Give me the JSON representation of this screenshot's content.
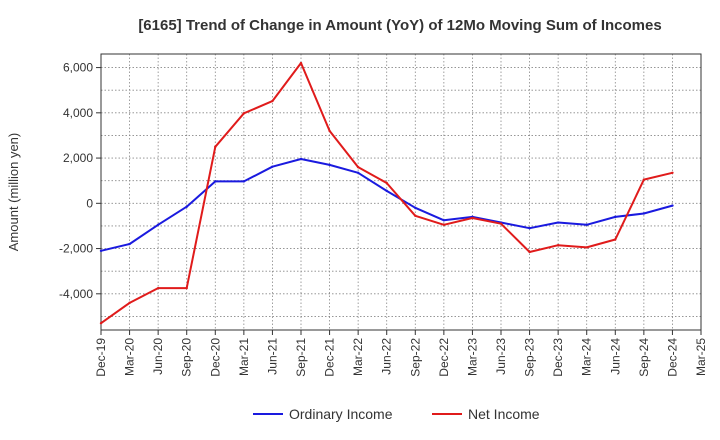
{
  "chart_data": {
    "type": "line",
    "title": "[6165]  Trend of Change in Amount (YoY) of 12Mo Moving Sum of Incomes",
    "xlabel": "",
    "ylabel": "Amount (million yen)",
    "ylim": [
      -5600,
      6600
    ],
    "yticks": [
      6000,
      4000,
      2000,
      0,
      -2000,
      -4000
    ],
    "ytick_labels": [
      "6,000",
      "4,000",
      "2,000",
      "0",
      "-2,000",
      "-4,000"
    ],
    "categories": [
      "Dec-19",
      "Mar-20",
      "Jun-20",
      "Sep-20",
      "Dec-20",
      "Mar-21",
      "Jun-21",
      "Sep-21",
      "Dec-21",
      "Mar-22",
      "Jun-22",
      "Sep-22",
      "Dec-22",
      "Mar-23",
      "Jun-23",
      "Sep-23",
      "Dec-23",
      "Mar-24",
      "Jun-24",
      "Sep-24",
      "Dec-24",
      "Mar-25"
    ],
    "grid": true,
    "legend_position": "bottom",
    "series": [
      {
        "name": "Ordinary Income",
        "color": "#1a1adf",
        "values": [
          -2100,
          -1800,
          -950,
          -150,
          970,
          970,
          1620,
          1960,
          1700,
          1350,
          550,
          -200,
          -750,
          -600,
          -850,
          -1100,
          -850,
          -950,
          -600,
          -450,
          -100,
          null
        ]
      },
      {
        "name": "Net Income",
        "color": "#e01b1b",
        "values": [
          -5300,
          -4400,
          -3750,
          -3750,
          2500,
          3980,
          4520,
          6200,
          3200,
          1600,
          900,
          -550,
          -950,
          -650,
          -900,
          -2150,
          -1850,
          -1950,
          -1600,
          1050,
          1350,
          null
        ]
      }
    ]
  }
}
